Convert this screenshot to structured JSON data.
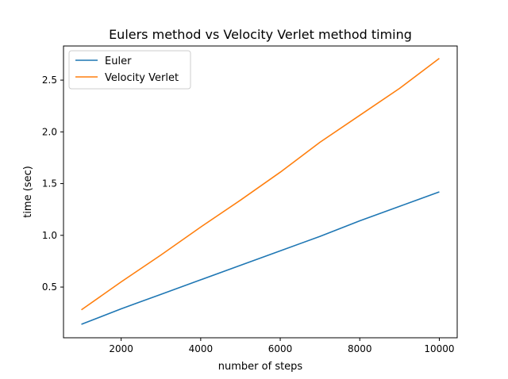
{
  "chart_data": {
    "type": "line",
    "title": "Eulers method vs Velocity Verlet method timing",
    "xlabel": "number of steps",
    "ylabel": "time (sec)",
    "xlim": [
      550,
      10450
    ],
    "ylim": [
      0.01,
      2.83
    ],
    "xticks": [
      2000,
      4000,
      6000,
      8000,
      10000
    ],
    "yticks": [
      0.5,
      1.0,
      1.5,
      2.0,
      2.5
    ],
    "xtick_labels": [
      "2000",
      "4000",
      "6000",
      "8000",
      "10000"
    ],
    "ytick_labels": [
      "0.5",
      "1.0",
      "1.5",
      "2.0",
      "2.5"
    ],
    "legend_position": "top-left",
    "grid": false,
    "x": [
      1000,
      2000,
      3000,
      4000,
      5000,
      6000,
      7000,
      8000,
      9000,
      10000
    ],
    "series": [
      {
        "name": "Euler",
        "color": "#1f77b4",
        "values": [
          0.14,
          0.29,
          0.43,
          0.57,
          0.71,
          0.85,
          0.99,
          1.14,
          1.28,
          1.42
        ]
      },
      {
        "name": "Velocity Verlet",
        "color": "#ff7f0e",
        "values": [
          0.28,
          0.55,
          0.81,
          1.08,
          1.34,
          1.61,
          1.9,
          2.16,
          2.42,
          2.71
        ]
      }
    ]
  }
}
